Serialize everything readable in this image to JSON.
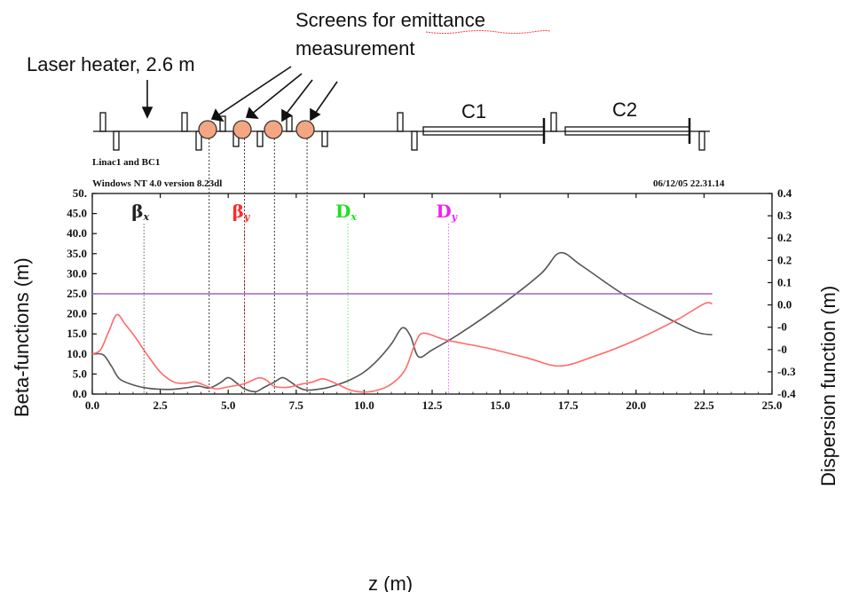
{
  "annotations": {
    "screens_line1": "Screens for emittance",
    "screens_line2": "measurement",
    "laser_heater": "Laser heater, 2.6 m",
    "c1": "C1",
    "c2": "C2",
    "beamline_name": "Linac1 and BC1",
    "software": "Windows NT 4.0 version 8.23dl",
    "date_time": "06/12/05 22.31.14"
  },
  "chart_data": {
    "type": "line",
    "xlabel": "z (m)",
    "ylabel": "Beta-functions (m)",
    "ylabel_right": "Dispersion function (m)",
    "xlim": [
      0,
      25
    ],
    "ylim": [
      0,
      50
    ],
    "ylim_right": [
      -0.4,
      0.4
    ],
    "x_ticks": [
      "0.0",
      "2.5",
      "5.0",
      "7.5",
      "10.0",
      "12.5",
      "15.0",
      "17.5",
      "20.0",
      "22.5",
      "25.0"
    ],
    "y_ticks": [
      "0.0",
      "5.0",
      "10.0",
      "15.0",
      "20.0",
      "25.0",
      "30.0",
      "35.0",
      "40.0",
      "45.0",
      "50."
    ],
    "y_ticks_right": [
      "-0.4",
      "-0.3",
      "-0",
      "-0",
      "0.0",
      "0.1",
      "0.2",
      "0.2",
      "0.3",
      "0.4"
    ],
    "legend": [
      {
        "label": "β",
        "sub": "x",
        "color": "#222222",
        "x": 1.9
      },
      {
        "label": "β",
        "sub": "y",
        "color": "#ff2a2a",
        "x": 5.6
      },
      {
        "label": "D",
        "sub": "x",
        "color": "#22dd22",
        "x": 9.4
      },
      {
        "label": "D",
        "sub": "y",
        "color": "#ee22ee",
        "x": 13.1
      }
    ],
    "screen_positions": [
      4.3,
      5.6,
      6.7,
      7.9
    ],
    "series": [
      {
        "name": "βx",
        "color": "#555555",
        "x": [
          0,
          0.4,
          0.7,
          1.0,
          1.5,
          2.0,
          2.5,
          3.0,
          3.5,
          3.9,
          4.3,
          4.7,
          5.0,
          5.3,
          5.6,
          6.0,
          6.3,
          6.7,
          7.0,
          7.3,
          7.6,
          7.9,
          8.5,
          9.0,
          9.5,
          10.0,
          10.5,
          11.0,
          11.4,
          11.7,
          12.0,
          12.5,
          13.5,
          15.0,
          16.5,
          17.2,
          18.0,
          19.5,
          21.0,
          22.2,
          22.8
        ],
        "y": [
          10.0,
          9.8,
          7.0,
          3.8,
          2.3,
          1.5,
          1.2,
          1.2,
          1.6,
          2.0,
          1.5,
          2.8,
          4.1,
          2.8,
          1.3,
          0.6,
          1.6,
          3.0,
          4.1,
          3.0,
          1.6,
          1.0,
          1.4,
          2.3,
          3.6,
          5.5,
          8.5,
          12.5,
          16.5,
          14.5,
          9.3,
          11.0,
          15.0,
          22.0,
          30.0,
          35.2,
          32.0,
          25.0,
          19.5,
          15.5,
          14.8
        ]
      },
      {
        "name": "βy",
        "color": "#ff6a6a",
        "x": [
          0,
          0.3,
          0.6,
          0.9,
          1.2,
          1.6,
          2.0,
          2.5,
          3.0,
          3.4,
          3.8,
          4.3,
          4.6,
          5.0,
          5.6,
          6.1,
          6.4,
          6.7,
          7.2,
          7.7,
          8.1,
          8.5,
          9.0,
          9.5,
          10.0,
          10.5,
          11.0,
          11.5,
          11.9,
          12.2,
          13.0,
          14.5,
          16.0,
          17.2,
          18.5,
          20.0,
          21.5,
          22.5,
          22.8
        ],
        "y": [
          10.0,
          11.0,
          15.5,
          19.8,
          17.5,
          14.0,
          10.0,
          5.5,
          3.0,
          2.7,
          3.0,
          1.7,
          1.3,
          1.8,
          2.6,
          4.0,
          3.5,
          1.9,
          1.7,
          2.5,
          3.0,
          3.8,
          2.5,
          1.0,
          0.5,
          1.0,
          2.5,
          6.0,
          13.0,
          15.2,
          13.5,
          11.5,
          9.0,
          7.0,
          9.5,
          13.5,
          18.5,
          22.5,
          22.5
        ]
      },
      {
        "name": "Dx",
        "color": "#9966cc",
        "x": [
          0,
          22.8
        ],
        "y": [
          25.0,
          25.0
        ]
      }
    ],
    "grid": false
  }
}
